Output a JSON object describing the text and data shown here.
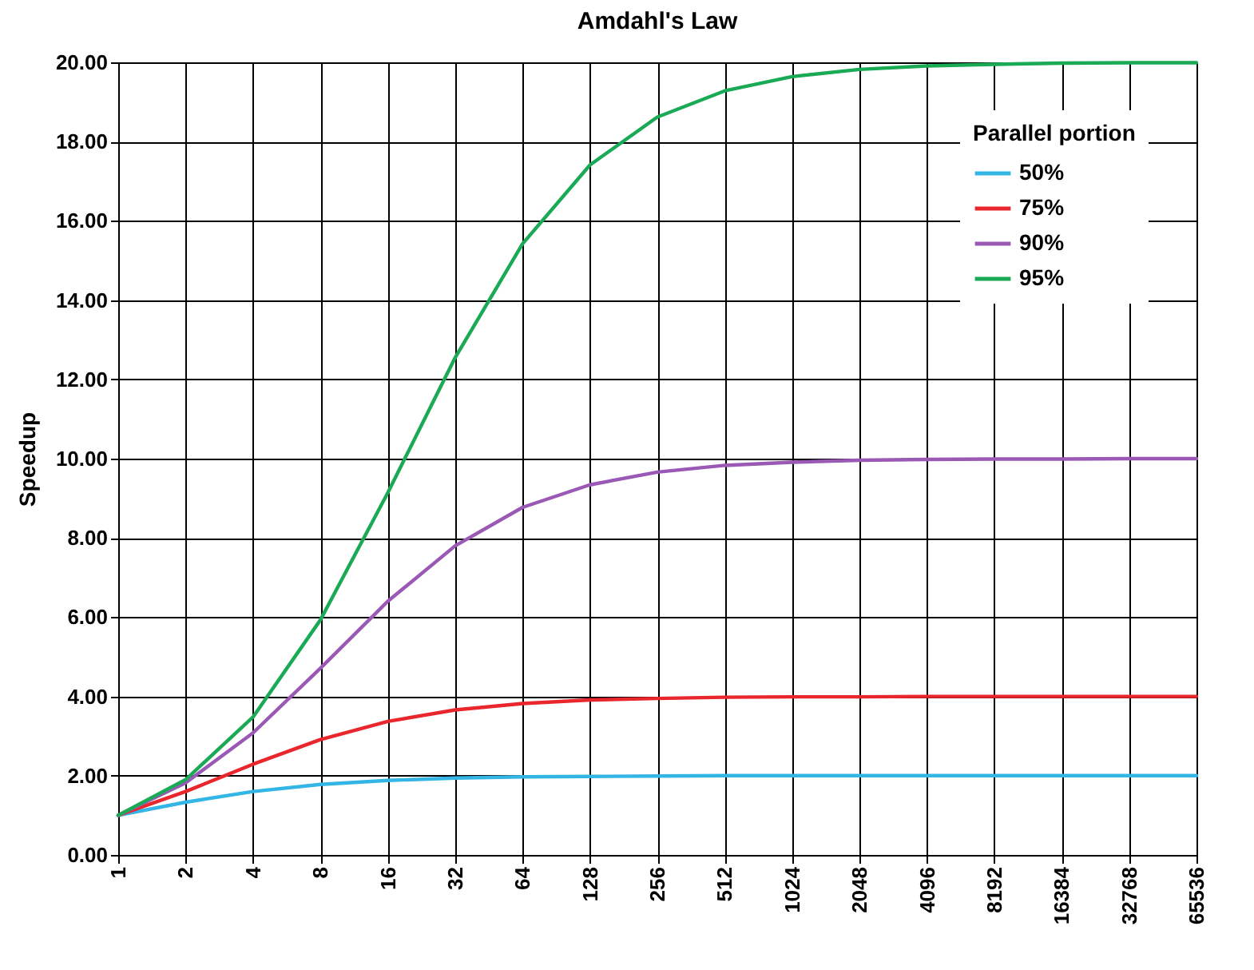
{
  "chart_data": {
    "type": "line",
    "title": "Amdahl's Law",
    "ylabel": "Speedup",
    "legend_title": "Parallel portion",
    "legend": "top right",
    "grid": true,
    "categories": [
      "1",
      "2",
      "4",
      "8",
      "16",
      "32",
      "64",
      "128",
      "256",
      "512",
      "1024",
      "2048",
      "4096",
      "8192",
      "16384",
      "32768",
      "65536"
    ],
    "ylim": [
      0,
      20
    ],
    "yticks": [
      {
        "value": 0,
        "label": "0.00"
      },
      {
        "value": 2,
        "label": "2.00"
      },
      {
        "value": 4,
        "label": "4.00"
      },
      {
        "value": 6,
        "label": "6.00"
      },
      {
        "value": 8,
        "label": "8.00"
      },
      {
        "value": 10,
        "label": "10.00"
      },
      {
        "value": 12,
        "label": "12.00"
      },
      {
        "value": 14,
        "label": "14.00"
      },
      {
        "value": 16,
        "label": "16.00"
      },
      {
        "value": 18,
        "label": "18.00"
      },
      {
        "value": 20,
        "label": "20.00"
      }
    ],
    "series": [
      {
        "name": "50%",
        "color": "#33b5e5",
        "values": [
          1,
          1.33,
          1.6,
          1.78,
          1.88,
          1.94,
          1.97,
          1.98,
          1.99,
          2,
          2,
          2,
          2,
          2,
          2,
          2,
          2
        ]
      },
      {
        "name": "75%",
        "color": "#e8262c",
        "values": [
          1,
          1.6,
          2.29,
          2.91,
          3.37,
          3.66,
          3.82,
          3.91,
          3.95,
          3.98,
          3.99,
          3.99,
          4,
          4,
          4,
          4,
          4
        ]
      },
      {
        "name": "90%",
        "color": "#9b59b6",
        "values": [
          1,
          1.82,
          3.08,
          4.71,
          6.4,
          7.8,
          8.77,
          9.34,
          9.66,
          9.83,
          9.91,
          9.96,
          9.98,
          9.99,
          9.99,
          10,
          10
        ]
      },
      {
        "name": "95%",
        "color": "#1aaa55",
        "values": [
          1,
          1.9,
          3.48,
          5.93,
          9.14,
          12.55,
          15.42,
          17.41,
          18.62,
          19.28,
          19.64,
          19.82,
          19.91,
          19.95,
          19.98,
          19.99,
          19.99
        ]
      }
    ]
  }
}
